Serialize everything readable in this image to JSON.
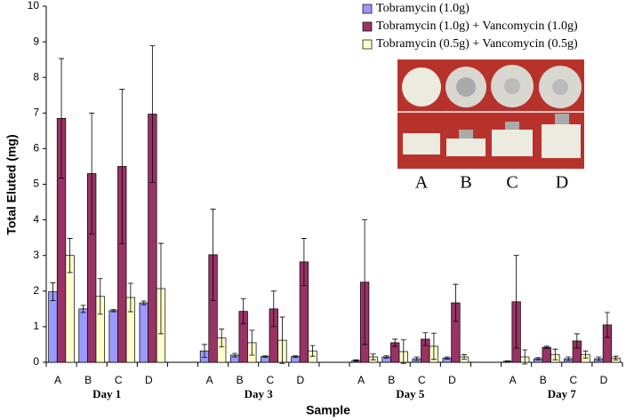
{
  "chart_data": {
    "type": "bar",
    "y_label": "Total Eluted (mg)",
    "x_label": "Sample",
    "categories": [
      "A",
      "B",
      "C",
      "D",
      null,
      "A",
      "B",
      "C",
      "D",
      null,
      "A",
      "B",
      "C",
      "D",
      null,
      "A",
      "B",
      "C",
      "D"
    ],
    "group_labels": [
      "Day 1",
      "Day 3",
      "Day 5",
      "Day 7"
    ],
    "series": [
      {
        "name": "Tobramycin (1.0g)",
        "color": "#9999ff",
        "values": [
          1.98,
          1.5,
          1.45,
          1.67,
          null,
          0.32,
          0.2,
          0.16,
          0.16,
          null,
          0.05,
          0.15,
          0.1,
          0.12,
          null,
          0.03,
          0.1,
          0.1,
          0.1
        ],
        "errors": [
          0.25,
          0.1,
          0.03,
          0.05,
          null,
          0.18,
          0.05,
          0.02,
          0.02,
          null,
          0.02,
          0.03,
          0.05,
          0.03,
          null,
          0.01,
          0.03,
          0.05,
          0.05
        ]
      },
      {
        "name": "Tobramycin (1.0g) + Vancomycin (1.0g)",
        "color": "#993366",
        "values": [
          6.85,
          5.3,
          5.5,
          6.97,
          null,
          3.02,
          1.43,
          1.5,
          2.82,
          null,
          2.25,
          0.55,
          0.65,
          1.67,
          null,
          1.7,
          0.42,
          0.6,
          1.05
        ],
        "errors": [
          1.68,
          1.7,
          2.17,
          1.92,
          null,
          1.28,
          0.35,
          0.5,
          0.66,
          null,
          1.75,
          0.1,
          0.18,
          0.52,
          null,
          1.3,
          0.03,
          0.2,
          0.35
        ]
      },
      {
        "name": "Tobramycin (0.5g) + Vancomycin (0.5g)",
        "color": "#ffffcc",
        "values": [
          3.0,
          1.85,
          1.82,
          2.07,
          null,
          0.68,
          0.55,
          0.62,
          0.32,
          null,
          0.15,
          0.3,
          0.45,
          0.15,
          null,
          0.15,
          0.22,
          0.22,
          0.12
        ],
        "errors": [
          0.48,
          0.5,
          0.4,
          1.27,
          null,
          0.25,
          0.35,
          0.65,
          0.15,
          null,
          0.08,
          0.33,
          0.37,
          0.06,
          null,
          0.2,
          0.15,
          0.1,
          0.05
        ]
      }
    ],
    "ylim": [
      0,
      10
    ],
    "yticks": [
      0,
      1,
      2,
      3,
      4,
      5,
      6,
      7,
      8,
      9,
      10
    ],
    "grid": false,
    "legend": "top-right",
    "inset_labels": [
      "A",
      "B",
      "C",
      "D"
    ]
  }
}
